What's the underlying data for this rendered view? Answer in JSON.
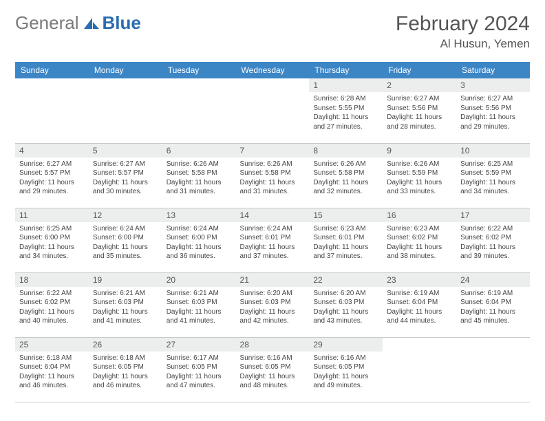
{
  "brand": {
    "part1": "General",
    "part2": "Blue"
  },
  "title": "February 2024",
  "location": "Al Husun, Yemen",
  "colors": {
    "header_bg": "#3d86c6",
    "header_text": "#ffffff",
    "daynum_bg": "#eceded",
    "border": "#c9c9c9",
    "brand_gray": "#7a7a7a",
    "brand_blue": "#2a6db0"
  },
  "weekdays": [
    "Sunday",
    "Monday",
    "Tuesday",
    "Wednesday",
    "Thursday",
    "Friday",
    "Saturday"
  ],
  "grid": [
    [
      null,
      null,
      null,
      null,
      {
        "n": "1",
        "sr": "6:28 AM",
        "ss": "5:55 PM",
        "dl": "11 hours and 27 minutes."
      },
      {
        "n": "2",
        "sr": "6:27 AM",
        "ss": "5:56 PM",
        "dl": "11 hours and 28 minutes."
      },
      {
        "n": "3",
        "sr": "6:27 AM",
        "ss": "5:56 PM",
        "dl": "11 hours and 29 minutes."
      }
    ],
    [
      {
        "n": "4",
        "sr": "6:27 AM",
        "ss": "5:57 PM",
        "dl": "11 hours and 29 minutes."
      },
      {
        "n": "5",
        "sr": "6:27 AM",
        "ss": "5:57 PM",
        "dl": "11 hours and 30 minutes."
      },
      {
        "n": "6",
        "sr": "6:26 AM",
        "ss": "5:58 PM",
        "dl": "11 hours and 31 minutes."
      },
      {
        "n": "7",
        "sr": "6:26 AM",
        "ss": "5:58 PM",
        "dl": "11 hours and 31 minutes."
      },
      {
        "n": "8",
        "sr": "6:26 AM",
        "ss": "5:58 PM",
        "dl": "11 hours and 32 minutes."
      },
      {
        "n": "9",
        "sr": "6:26 AM",
        "ss": "5:59 PM",
        "dl": "11 hours and 33 minutes."
      },
      {
        "n": "10",
        "sr": "6:25 AM",
        "ss": "5:59 PM",
        "dl": "11 hours and 34 minutes."
      }
    ],
    [
      {
        "n": "11",
        "sr": "6:25 AM",
        "ss": "6:00 PM",
        "dl": "11 hours and 34 minutes."
      },
      {
        "n": "12",
        "sr": "6:24 AM",
        "ss": "6:00 PM",
        "dl": "11 hours and 35 minutes."
      },
      {
        "n": "13",
        "sr": "6:24 AM",
        "ss": "6:00 PM",
        "dl": "11 hours and 36 minutes."
      },
      {
        "n": "14",
        "sr": "6:24 AM",
        "ss": "6:01 PM",
        "dl": "11 hours and 37 minutes."
      },
      {
        "n": "15",
        "sr": "6:23 AM",
        "ss": "6:01 PM",
        "dl": "11 hours and 37 minutes."
      },
      {
        "n": "16",
        "sr": "6:23 AM",
        "ss": "6:02 PM",
        "dl": "11 hours and 38 minutes."
      },
      {
        "n": "17",
        "sr": "6:22 AM",
        "ss": "6:02 PM",
        "dl": "11 hours and 39 minutes."
      }
    ],
    [
      {
        "n": "18",
        "sr": "6:22 AM",
        "ss": "6:02 PM",
        "dl": "11 hours and 40 minutes."
      },
      {
        "n": "19",
        "sr": "6:21 AM",
        "ss": "6:03 PM",
        "dl": "11 hours and 41 minutes."
      },
      {
        "n": "20",
        "sr": "6:21 AM",
        "ss": "6:03 PM",
        "dl": "11 hours and 41 minutes."
      },
      {
        "n": "21",
        "sr": "6:20 AM",
        "ss": "6:03 PM",
        "dl": "11 hours and 42 minutes."
      },
      {
        "n": "22",
        "sr": "6:20 AM",
        "ss": "6:03 PM",
        "dl": "11 hours and 43 minutes."
      },
      {
        "n": "23",
        "sr": "6:19 AM",
        "ss": "6:04 PM",
        "dl": "11 hours and 44 minutes."
      },
      {
        "n": "24",
        "sr": "6:19 AM",
        "ss": "6:04 PM",
        "dl": "11 hours and 45 minutes."
      }
    ],
    [
      {
        "n": "25",
        "sr": "6:18 AM",
        "ss": "6:04 PM",
        "dl": "11 hours and 46 minutes."
      },
      {
        "n": "26",
        "sr": "6:18 AM",
        "ss": "6:05 PM",
        "dl": "11 hours and 46 minutes."
      },
      {
        "n": "27",
        "sr": "6:17 AM",
        "ss": "6:05 PM",
        "dl": "11 hours and 47 minutes."
      },
      {
        "n": "28",
        "sr": "6:16 AM",
        "ss": "6:05 PM",
        "dl": "11 hours and 48 minutes."
      },
      {
        "n": "29",
        "sr": "6:16 AM",
        "ss": "6:05 PM",
        "dl": "11 hours and 49 minutes."
      },
      null,
      null
    ]
  ],
  "labels": {
    "sunrise": "Sunrise:",
    "sunset": "Sunset:",
    "daylight": "Daylight:"
  }
}
